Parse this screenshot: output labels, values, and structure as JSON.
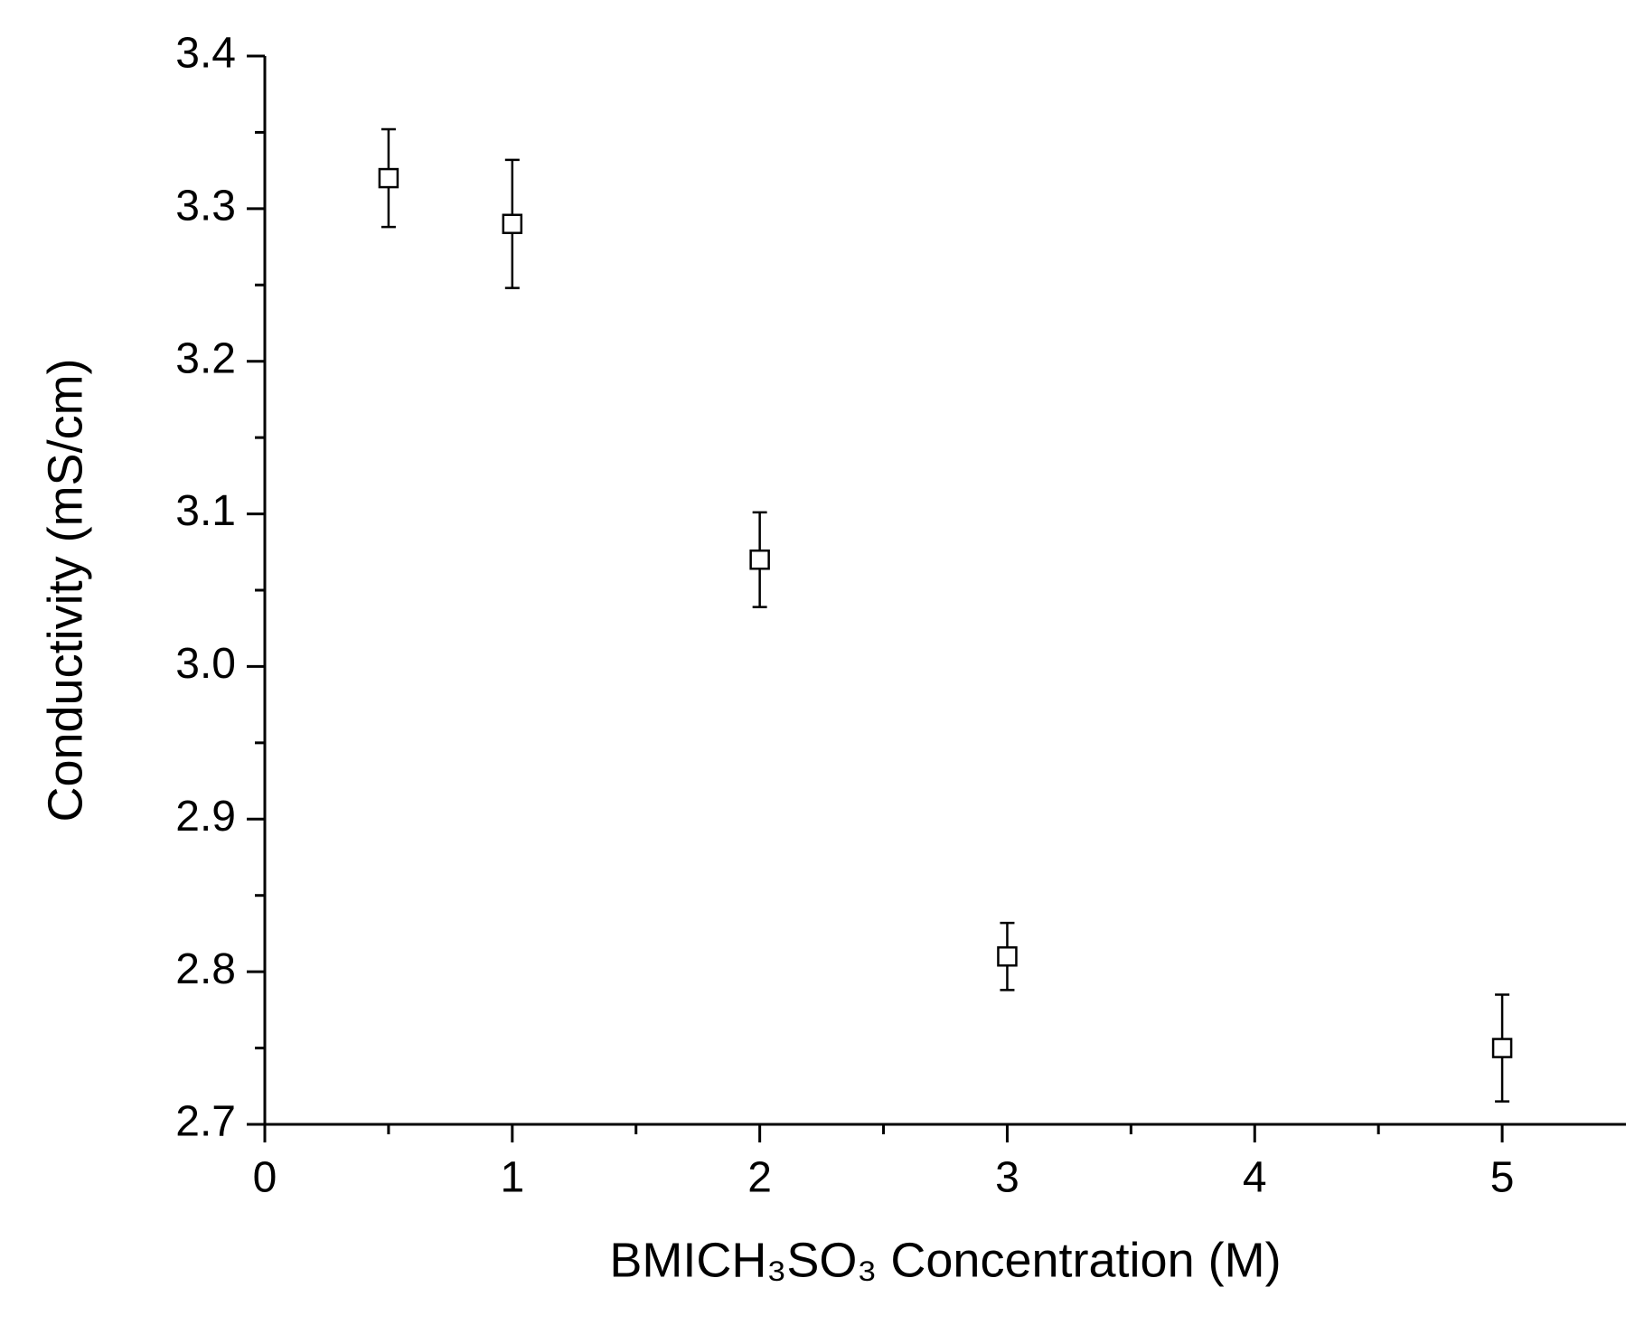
{
  "chart_data": {
    "type": "scatter",
    "x_label": "BMICH₃SO₃ Concentration (M)",
    "y_label": "Conductivity (mS/cm)",
    "x": [
      0.5,
      1,
      2,
      3,
      5
    ],
    "values": [
      3.32,
      3.29,
      3.07,
      2.81,
      2.75
    ],
    "errors": [
      0.032,
      0.042,
      0.031,
      0.022,
      0.035
    ],
    "color": "#000000",
    "xlim": [
      0,
      5.5
    ],
    "xticks": [
      0,
      1,
      2,
      3,
      4,
      5
    ],
    "ylim": [
      2.7,
      3.4
    ],
    "yticks": [
      {
        "value": 2.7,
        "label": "2.7"
      },
      {
        "value": 2.8,
        "label": "2.8"
      },
      {
        "value": 2.9,
        "label": "2.9"
      },
      {
        "value": 3,
        "label": "3.0"
      },
      {
        "value": 3.1,
        "label": "3.1"
      },
      {
        "value": 3.2,
        "label": "3.2"
      },
      {
        "value": 3.3,
        "label": "3.3"
      },
      {
        "value": 3.4,
        "label": "3.4"
      }
    ],
    "grid": false
  }
}
